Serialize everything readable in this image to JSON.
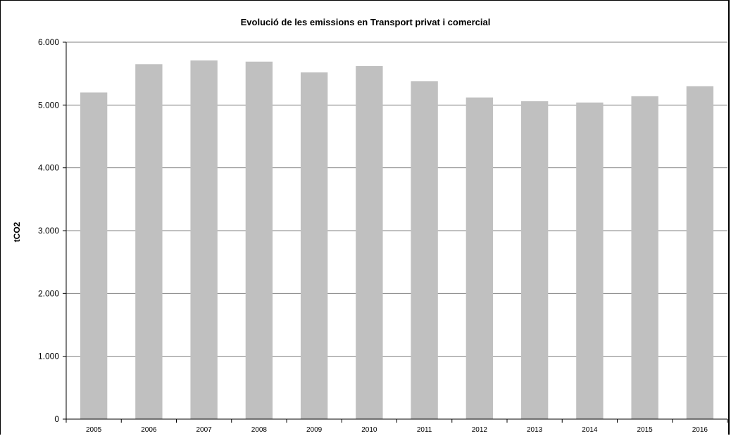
{
  "chart_data": {
    "type": "bar",
    "title": "Evolució de les emissions  en Transport privat i comercial",
    "xlabel": "",
    "ylabel": "tCO2",
    "categories": [
      "2005",
      "2006",
      "2007",
      "2008",
      "2009",
      "2010",
      "2011",
      "2012",
      "2013",
      "2014",
      "2015",
      "2016"
    ],
    "values": [
      5200,
      5650,
      5710,
      5690,
      5520,
      5620,
      5380,
      5120,
      5060,
      5040,
      5140,
      5300
    ],
    "ylim": [
      0,
      6000
    ],
    "yticks": [
      0,
      1000,
      2000,
      3000,
      4000,
      5000,
      6000
    ],
    "ytick_labels": [
      "0",
      "1.000",
      "2.000",
      "3.000",
      "4.000",
      "5.000",
      "6.000"
    ],
    "grid": true,
    "legend": "none",
    "bar_color": "#c0c0c0",
    "grid_color": "#808080"
  }
}
